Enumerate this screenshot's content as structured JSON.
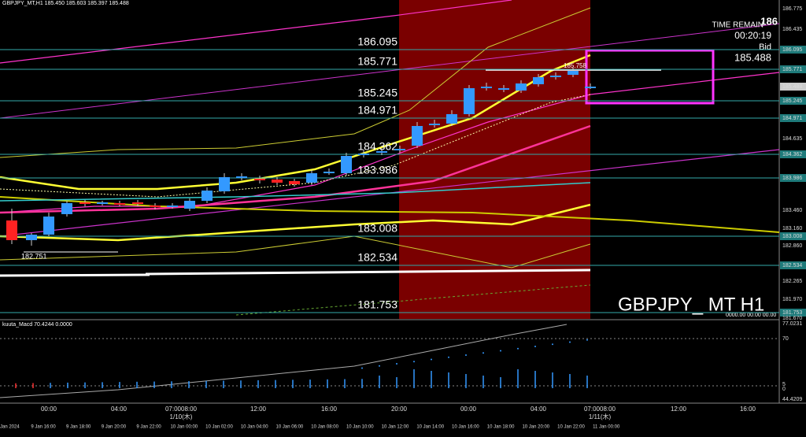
{
  "header": "GBPJPY_MT,H1 185.450 185.603 185.397 185.488",
  "symbol_label": "GBPJPY_ MT H1",
  "timer": {
    "corner": "186",
    "label": "TIME REMAIN",
    "value": "00:20:19",
    "bid_label": "Bid",
    "bid": "185.488"
  },
  "levels": [
    "186.095",
    "185.771",
    "185.245",
    "184.971",
    "184.362",
    "183.986",
    "183.008",
    "182.534",
    "181.753"
  ],
  "low_label": "182.751",
  "high_label": "185.758",
  "price_axis": [
    "186.775",
    "186.435",
    "186.095",
    "185.771",
    "185.488",
    "185.245",
    "184.971",
    "184.635",
    "184.362",
    "183.986",
    "183.460",
    "183.160",
    "183.008",
    "182.860",
    "182.534",
    "182.265",
    "181.970",
    "181.753",
    "181.670"
  ],
  "indicator": {
    "title": "kuuta_Macd 70.4244  0.0000",
    "zero_label": "0000.00 00.00 00.00",
    "axis": [
      "77.0231",
      "70",
      "5",
      "0",
      "44.4209"
    ]
  },
  "time_axis": [
    "00:00",
    "04:00",
    "07:0008:00",
    "12:00",
    "16:00",
    "20:00",
    "00:00",
    "04:00",
    "07:0008:00",
    "12:00",
    "16:00"
  ],
  "date_axis": [
    "Jan 2024",
    "9 Jan 16:00",
    "9 Jan 18:00",
    "9 Jan 20:00",
    "9 Jan 22:00",
    "10 Jan 00:00",
    "10 Jan 02:00",
    "10 Jan 04:00",
    "10 Jan 06:00",
    "10 Jan 08:00",
    "10 Jan 10:00",
    "10 Jan 12:00",
    "10 Jan 14:00",
    "10 Jan 16:00",
    "10 Jan 18:00",
    "10 Jan 20:00",
    "10 Jan 22:00",
    "11 Jan 00:00"
  ],
  "day_marks": [
    "1/10(木)",
    "1/11(木)"
  ]
}
